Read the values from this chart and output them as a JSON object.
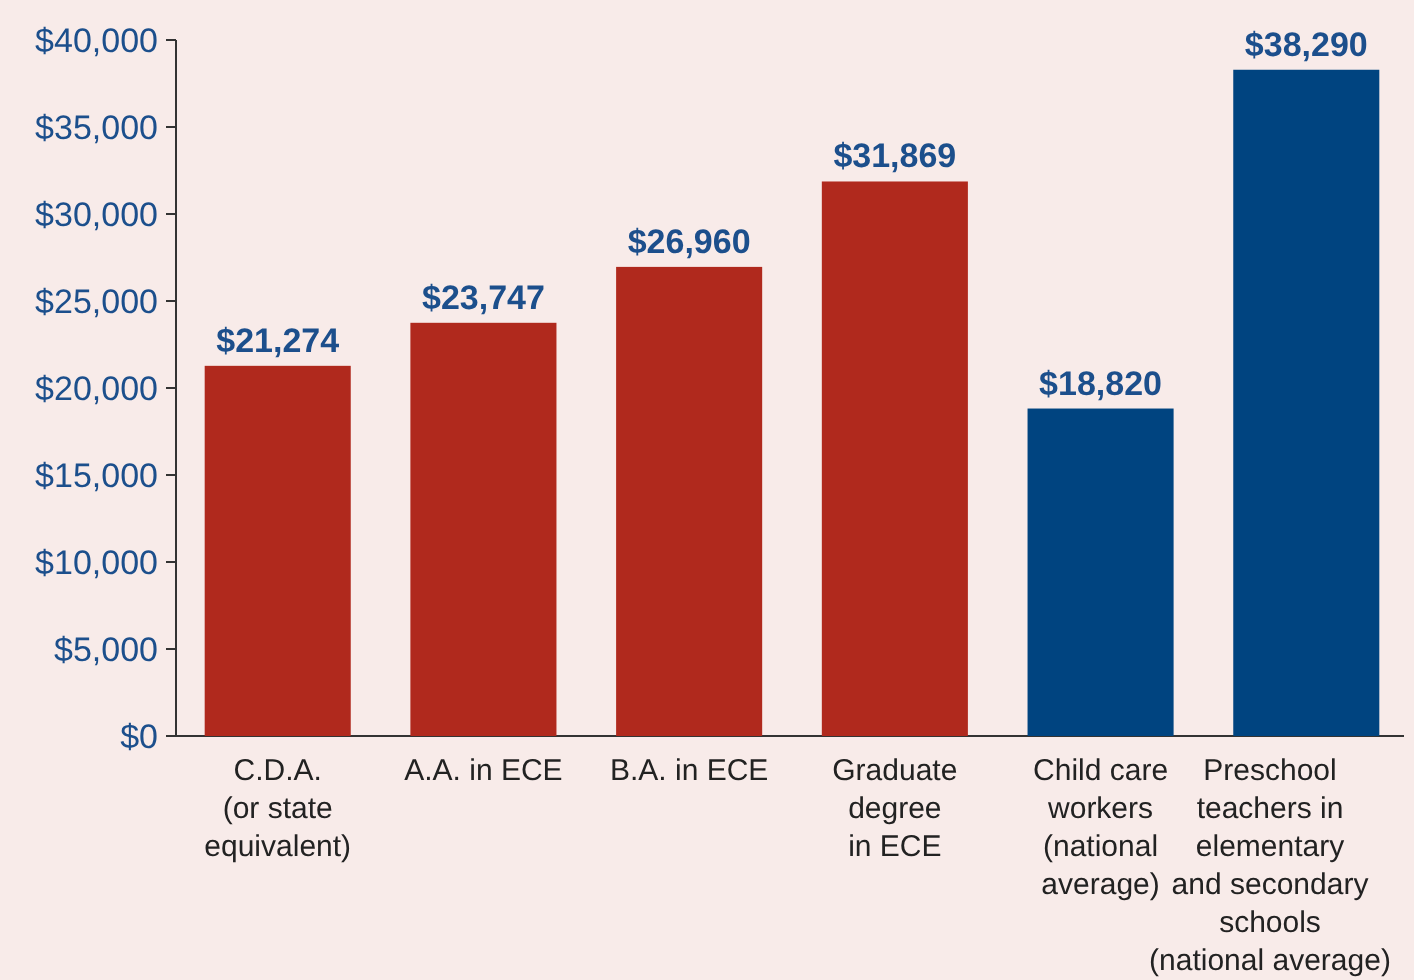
{
  "chart_data": {
    "type": "bar",
    "categories": [
      "C.D.A.\n(or state\nequivalent)",
      "A.A. in ECE",
      "B.A. in ECE",
      "Graduate\ndegree\nin ECE",
      "Child care\nworkers\n(national\naverage)",
      "Preschool\nteachers in\nelementary\nand secondary\nschools\n(national average)"
    ],
    "values": [
      21274,
      23747,
      26960,
      31869,
      18820,
      38290
    ],
    "colors": [
      "#b0291d",
      "#b0291d",
      "#b0291d",
      "#b0291d",
      "#004480",
      "#004480"
    ],
    "value_labels": [
      "$21,274",
      "$23,747",
      "$26,960",
      "$31,869",
      "$18,820",
      "$38,290"
    ],
    "ylim": [
      0,
      40000
    ],
    "yticks": [
      {
        "value": 0,
        "label": "$0"
      },
      {
        "value": 5000,
        "label": "$5,000"
      },
      {
        "value": 10000,
        "label": "$10,000"
      },
      {
        "value": 15000,
        "label": "$15,000"
      },
      {
        "value": 20000,
        "label": "$20,000"
      },
      {
        "value": 25000,
        "label": "$25,000"
      },
      {
        "value": 30000,
        "label": "$30,000"
      },
      {
        "value": 35000,
        "label": "$35,000"
      },
      {
        "value": 40000,
        "label": "$40,000"
      }
    ],
    "grid": false
  }
}
